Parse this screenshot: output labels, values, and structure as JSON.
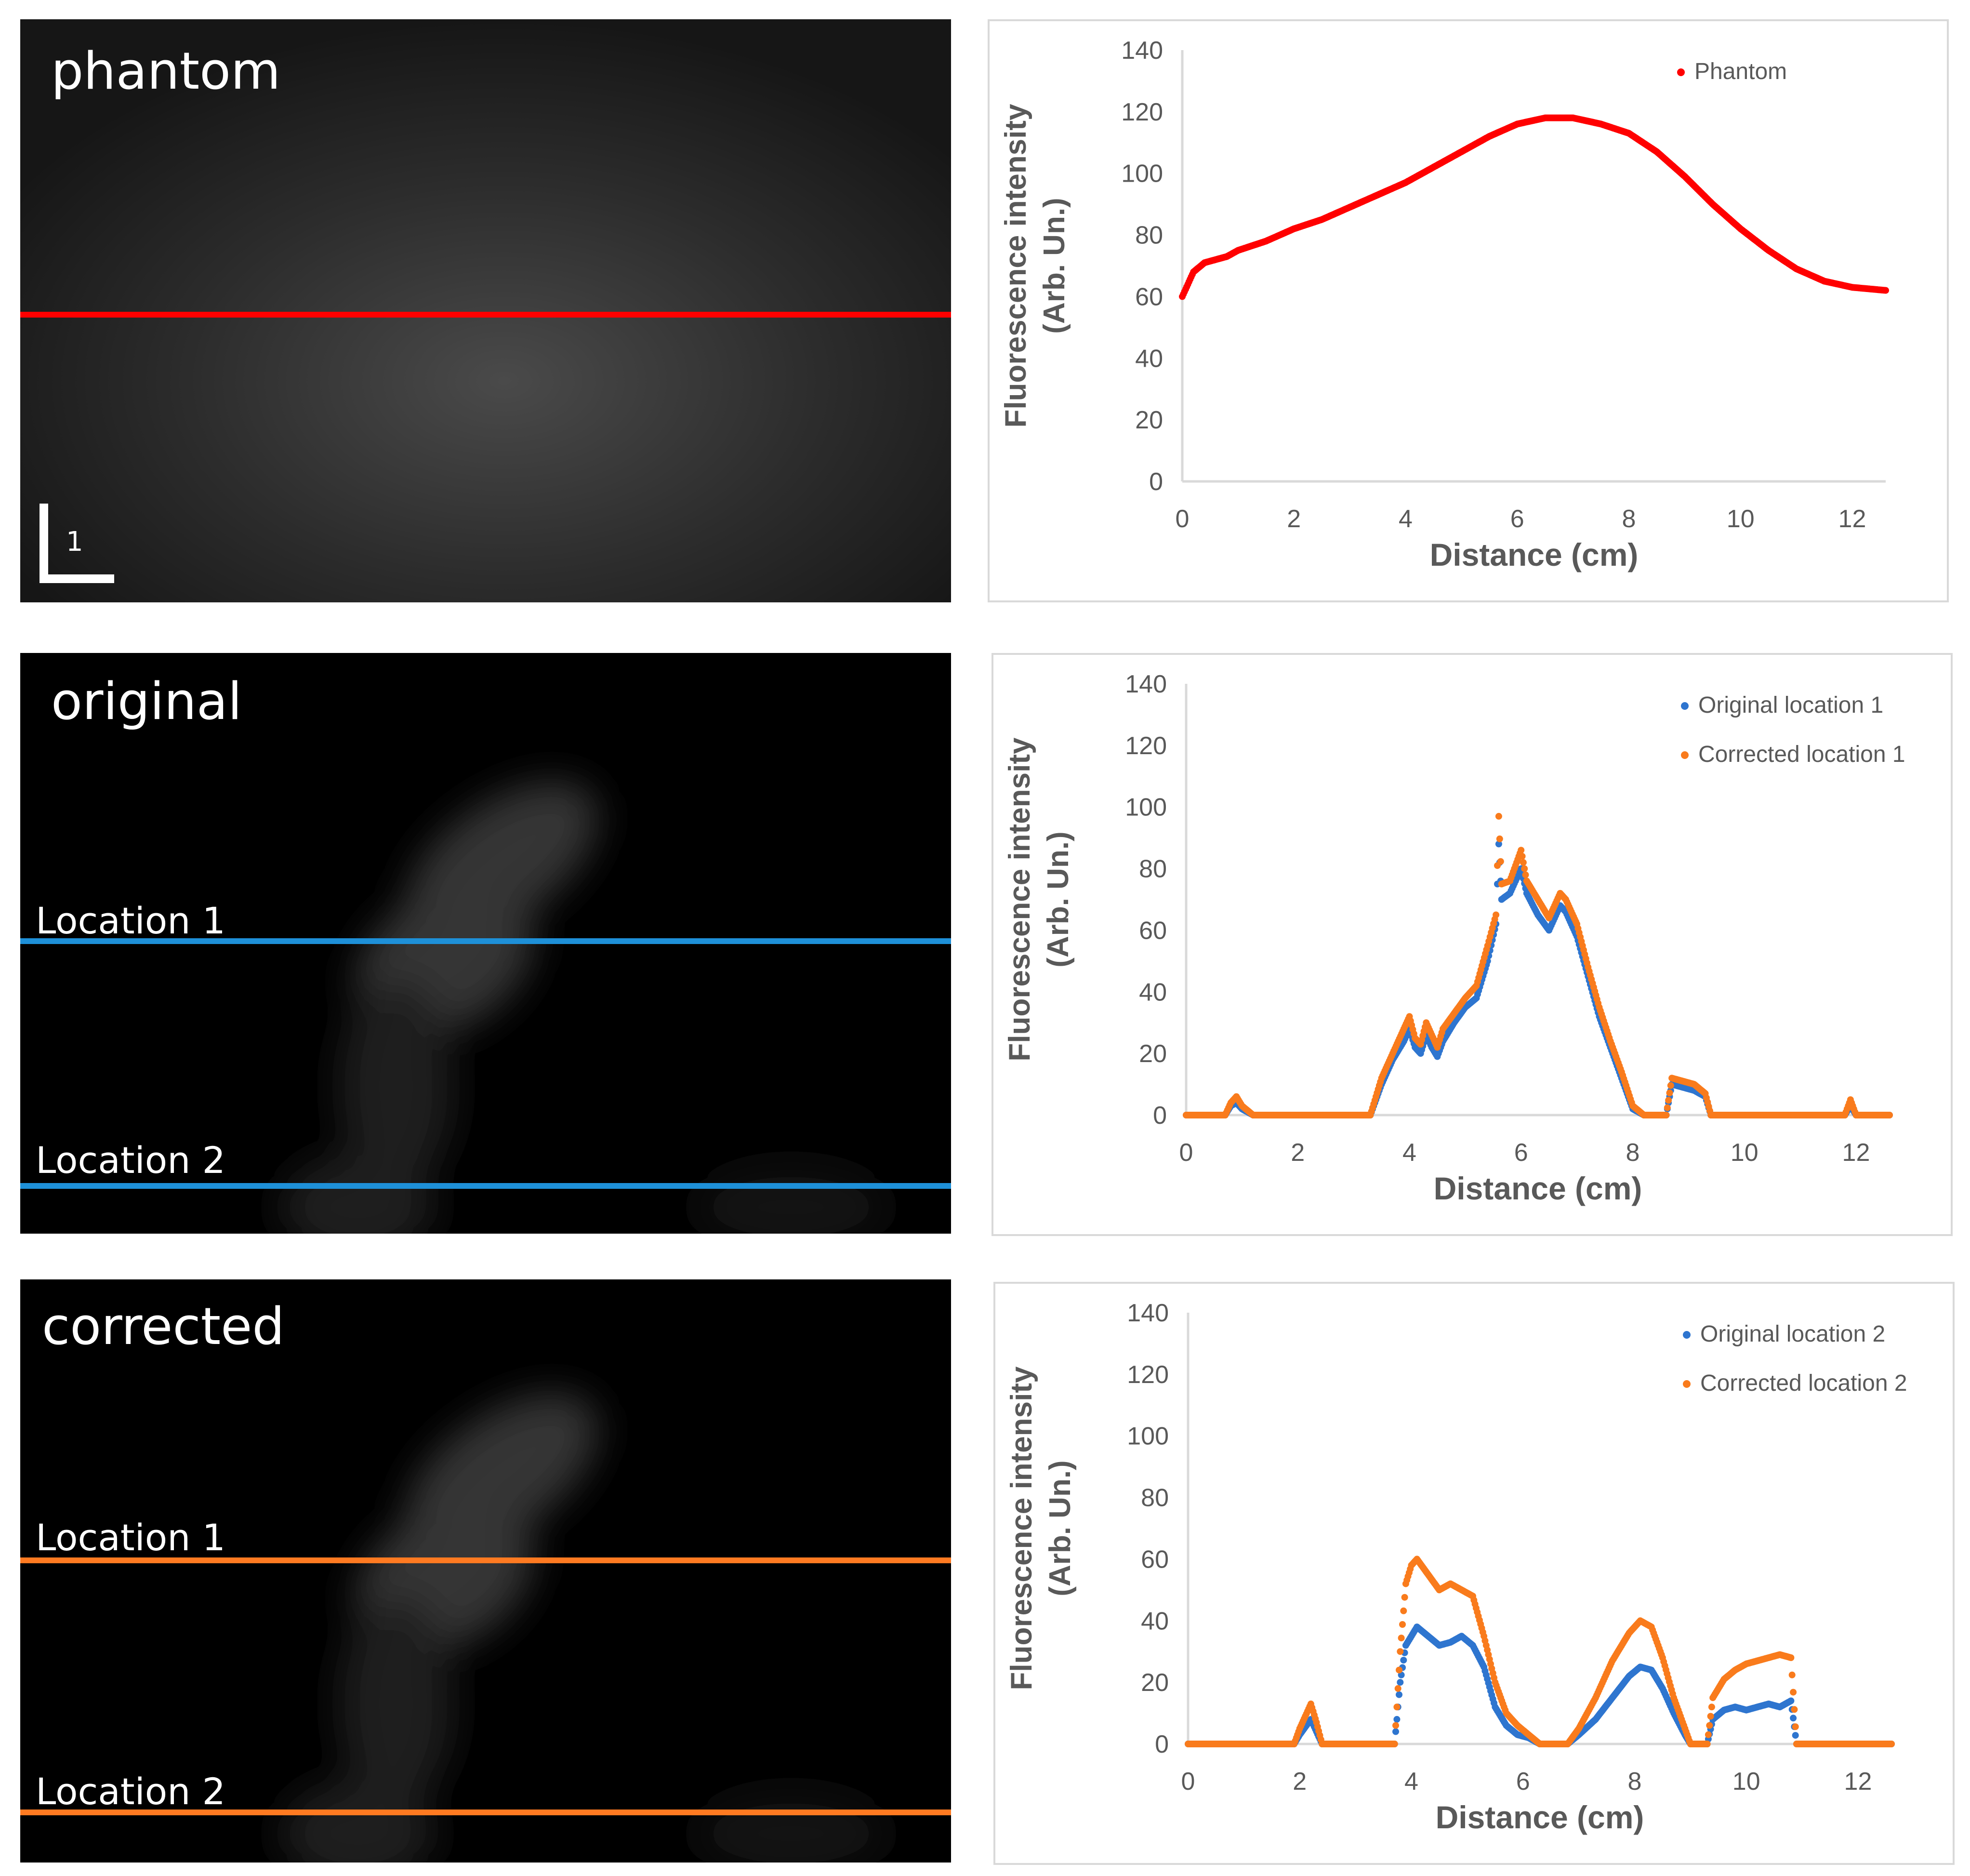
{
  "panels": {
    "phantom": {
      "title": "phantom",
      "scale_label": "1"
    },
    "original": {
      "title": "original",
      "loc1": "Location 1",
      "loc2": "Location 2"
    },
    "corrected": {
      "title": "corrected",
      "loc1": "Location 1",
      "loc2": "Location 2"
    }
  },
  "colors": {
    "phantom": "#ff0000",
    "original": "#2e75cf",
    "corrected": "#f97b1c",
    "line_original": "#1e90d8",
    "line_corrected": "#ff7a21",
    "axis": "#d9d9d9",
    "text": "#595959"
  },
  "chart_data": [
    {
      "type": "scatter",
      "title": "",
      "xlabel": "Distance (cm)",
      "ylabel_line1": "Fluorescence intensity",
      "ylabel_line2": "(Arb. Un.)",
      "xlim": [
        0,
        12.6
      ],
      "ylim": [
        0,
        140
      ],
      "xticks": [
        "0",
        "2",
        "4",
        "6",
        "8",
        "10",
        "12"
      ],
      "yticks": [
        "0",
        "20",
        "40",
        "60",
        "80",
        "100",
        "120",
        "140"
      ],
      "legend_position": "top-right",
      "series": [
        {
          "name": "Phantom",
          "color": "#ff0000",
          "points": [
            [
              0,
              60
            ],
            [
              0.1,
              64
            ],
            [
              0.2,
              68
            ],
            [
              0.4,
              71
            ],
            [
              0.6,
              72
            ],
            [
              0.8,
              73
            ],
            [
              1,
              75
            ],
            [
              1.5,
              78
            ],
            [
              2,
              82
            ],
            [
              2.5,
              85
            ],
            [
              3,
              89
            ],
            [
              3.5,
              93
            ],
            [
              4,
              97
            ],
            [
              4.5,
              102
            ],
            [
              5,
              107
            ],
            [
              5.5,
              112
            ],
            [
              6,
              116
            ],
            [
              6.5,
              118
            ],
            [
              7,
              118
            ],
            [
              7.5,
              116
            ],
            [
              8,
              113
            ],
            [
              8.5,
              107
            ],
            [
              9,
              99
            ],
            [
              9.5,
              90
            ],
            [
              10,
              82
            ],
            [
              10.5,
              75
            ],
            [
              11,
              69
            ],
            [
              11.5,
              65
            ],
            [
              12,
              63
            ],
            [
              12.6,
              62
            ]
          ]
        }
      ]
    },
    {
      "type": "scatter",
      "title": "",
      "xlabel": "Distance (cm)",
      "ylabel_line1": "Fluorescence intensity",
      "ylabel_line2": "(Arb. Un.)",
      "xlim": [
        0,
        12.6
      ],
      "ylim": [
        0,
        140
      ],
      "xticks": [
        "0",
        "2",
        "4",
        "6",
        "8",
        "10",
        "12"
      ],
      "yticks": [
        "0",
        "20",
        "40",
        "60",
        "80",
        "100",
        "120",
        "140"
      ],
      "legend_position": "top-right",
      "series": [
        {
          "name": "Original location 1",
          "color": "#2e75cf",
          "points": [
            [
              0,
              0
            ],
            [
              0.7,
              0
            ],
            [
              0.8,
              3
            ],
            [
              0.9,
              4
            ],
            [
              1.0,
              2
            ],
            [
              1.2,
              0
            ],
            [
              3.3,
              0
            ],
            [
              3.5,
              10
            ],
            [
              3.7,
              18
            ],
            [
              3.9,
              24
            ],
            [
              4.0,
              28
            ],
            [
              4.1,
              22
            ],
            [
              4.2,
              20
            ],
            [
              4.3,
              26
            ],
            [
              4.4,
              22
            ],
            [
              4.5,
              19
            ],
            [
              4.6,
              24
            ],
            [
              4.8,
              30
            ],
            [
              5.0,
              35
            ],
            [
              5.2,
              38
            ],
            [
              5.4,
              50
            ],
            [
              5.55,
              62
            ],
            [
              5.6,
              88
            ],
            [
              5.65,
              70
            ],
            [
              5.8,
              72
            ],
            [
              6.0,
              80
            ],
            [
              6.1,
              72
            ],
            [
              6.3,
              65
            ],
            [
              6.5,
              60
            ],
            [
              6.7,
              68
            ],
            [
              6.8,
              66
            ],
            [
              7.0,
              58
            ],
            [
              7.2,
              45
            ],
            [
              7.4,
              32
            ],
            [
              7.6,
              22
            ],
            [
              7.8,
              12
            ],
            [
              8.0,
              2
            ],
            [
              8.2,
              0
            ],
            [
              8.6,
              0
            ],
            [
              8.7,
              10
            ],
            [
              8.9,
              9
            ],
            [
              9.1,
              8
            ],
            [
              9.3,
              6
            ],
            [
              9.4,
              0
            ],
            [
              11.8,
              0
            ],
            [
              11.9,
              3
            ],
            [
              12.0,
              0
            ],
            [
              12.6,
              0
            ]
          ]
        },
        {
          "name": "Corrected location 1",
          "color": "#f97b1c",
          "points": [
            [
              0,
              0
            ],
            [
              0.7,
              0
            ],
            [
              0.8,
              4
            ],
            [
              0.9,
              6
            ],
            [
              1.0,
              3
            ],
            [
              1.2,
              0
            ],
            [
              3.3,
              0
            ],
            [
              3.5,
              12
            ],
            [
              3.7,
              20
            ],
            [
              3.9,
              28
            ],
            [
              4.0,
              32
            ],
            [
              4.1,
              25
            ],
            [
              4.2,
              23
            ],
            [
              4.3,
              30
            ],
            [
              4.4,
              26
            ],
            [
              4.5,
              22
            ],
            [
              4.6,
              28
            ],
            [
              4.8,
              33
            ],
            [
              5.0,
              38
            ],
            [
              5.2,
              42
            ],
            [
              5.4,
              55
            ],
            [
              5.55,
              65
            ],
            [
              5.6,
              97
            ],
            [
              5.65,
              75
            ],
            [
              5.8,
              76
            ],
            [
              6.0,
              86
            ],
            [
              6.1,
              76
            ],
            [
              6.3,
              70
            ],
            [
              6.5,
              64
            ],
            [
              6.7,
              72
            ],
            [
              6.8,
              70
            ],
            [
              7.0,
              62
            ],
            [
              7.2,
              48
            ],
            [
              7.4,
              35
            ],
            [
              7.6,
              24
            ],
            [
              7.8,
              14
            ],
            [
              8.0,
              3
            ],
            [
              8.2,
              0
            ],
            [
              8.6,
              0
            ],
            [
              8.7,
              12
            ],
            [
              8.9,
              11
            ],
            [
              9.1,
              10
            ],
            [
              9.3,
              7
            ],
            [
              9.4,
              0
            ],
            [
              11.8,
              0
            ],
            [
              11.9,
              5
            ],
            [
              12.0,
              0
            ],
            [
              12.6,
              0
            ]
          ]
        }
      ]
    },
    {
      "type": "scatter",
      "title": "",
      "xlabel": "Distance (cm)",
      "ylabel_line1": "Fluorescence intensity",
      "ylabel_line2": "(Arb. Un.)",
      "xlim": [
        0,
        12.6
      ],
      "ylim": [
        0,
        140
      ],
      "xticks": [
        "0",
        "2",
        "4",
        "6",
        "8",
        "10",
        "12"
      ],
      "yticks": [
        "0",
        "20",
        "40",
        "60",
        "80",
        "100",
        "120",
        "140"
      ],
      "legend_position": "top-right",
      "series": [
        {
          "name": "Original location 2",
          "color": "#2e75cf",
          "points": [
            [
              0,
              0
            ],
            [
              1.9,
              0
            ],
            [
              2.0,
              3
            ],
            [
              2.2,
              8
            ],
            [
              2.3,
              4
            ],
            [
              2.4,
              0
            ],
            [
              3.7,
              0
            ],
            [
              3.8,
              20
            ],
            [
              3.9,
              32
            ],
            [
              4.0,
              35
            ],
            [
              4.1,
              38
            ],
            [
              4.3,
              35
            ],
            [
              4.5,
              32
            ],
            [
              4.7,
              33
            ],
            [
              4.9,
              35
            ],
            [
              5.1,
              32
            ],
            [
              5.3,
              25
            ],
            [
              5.5,
              12
            ],
            [
              5.7,
              6
            ],
            [
              5.9,
              3
            ],
            [
              6.1,
              2
            ],
            [
              6.3,
              0
            ],
            [
              6.8,
              0
            ],
            [
              7.0,
              3
            ],
            [
              7.3,
              8
            ],
            [
              7.6,
              15
            ],
            [
              7.9,
              22
            ],
            [
              8.1,
              25
            ],
            [
              8.3,
              24
            ],
            [
              8.5,
              18
            ],
            [
              8.7,
              10
            ],
            [
              8.9,
              3
            ],
            [
              9.0,
              0
            ],
            [
              9.3,
              0
            ],
            [
              9.4,
              8
            ],
            [
              9.6,
              11
            ],
            [
              9.8,
              12
            ],
            [
              10.0,
              11
            ],
            [
              10.2,
              12
            ],
            [
              10.4,
              13
            ],
            [
              10.6,
              12
            ],
            [
              10.8,
              14
            ],
            [
              10.9,
              0
            ],
            [
              12.6,
              0
            ]
          ]
        },
        {
          "name": "Corrected location 2",
          "color": "#f97b1c",
          "points": [
            [
              0,
              0
            ],
            [
              1.9,
              0
            ],
            [
              2.0,
              5
            ],
            [
              2.2,
              13
            ],
            [
              2.3,
              7
            ],
            [
              2.4,
              0
            ],
            [
              3.7,
              0
            ],
            [
              3.8,
              30
            ],
            [
              3.9,
              52
            ],
            [
              4.0,
              58
            ],
            [
              4.1,
              60
            ],
            [
              4.3,
              55
            ],
            [
              4.5,
              50
            ],
            [
              4.7,
              52
            ],
            [
              4.9,
              50
            ],
            [
              5.1,
              48
            ],
            [
              5.3,
              35
            ],
            [
              5.5,
              20
            ],
            [
              5.7,
              10
            ],
            [
              5.9,
              6
            ],
            [
              6.1,
              3
            ],
            [
              6.3,
              0
            ],
            [
              6.8,
              0
            ],
            [
              7.0,
              5
            ],
            [
              7.3,
              15
            ],
            [
              7.6,
              27
            ],
            [
              7.9,
              36
            ],
            [
              8.1,
              40
            ],
            [
              8.3,
              38
            ],
            [
              8.5,
              28
            ],
            [
              8.7,
              15
            ],
            [
              8.9,
              5
            ],
            [
              9.0,
              0
            ],
            [
              9.3,
              0
            ],
            [
              9.4,
              15
            ],
            [
              9.6,
              21
            ],
            [
              9.8,
              24
            ],
            [
              10.0,
              26
            ],
            [
              10.2,
              27
            ],
            [
              10.4,
              28
            ],
            [
              10.6,
              29
            ],
            [
              10.8,
              28
            ],
            [
              10.9,
              0
            ],
            [
              12.6,
              0
            ]
          ]
        }
      ]
    }
  ]
}
